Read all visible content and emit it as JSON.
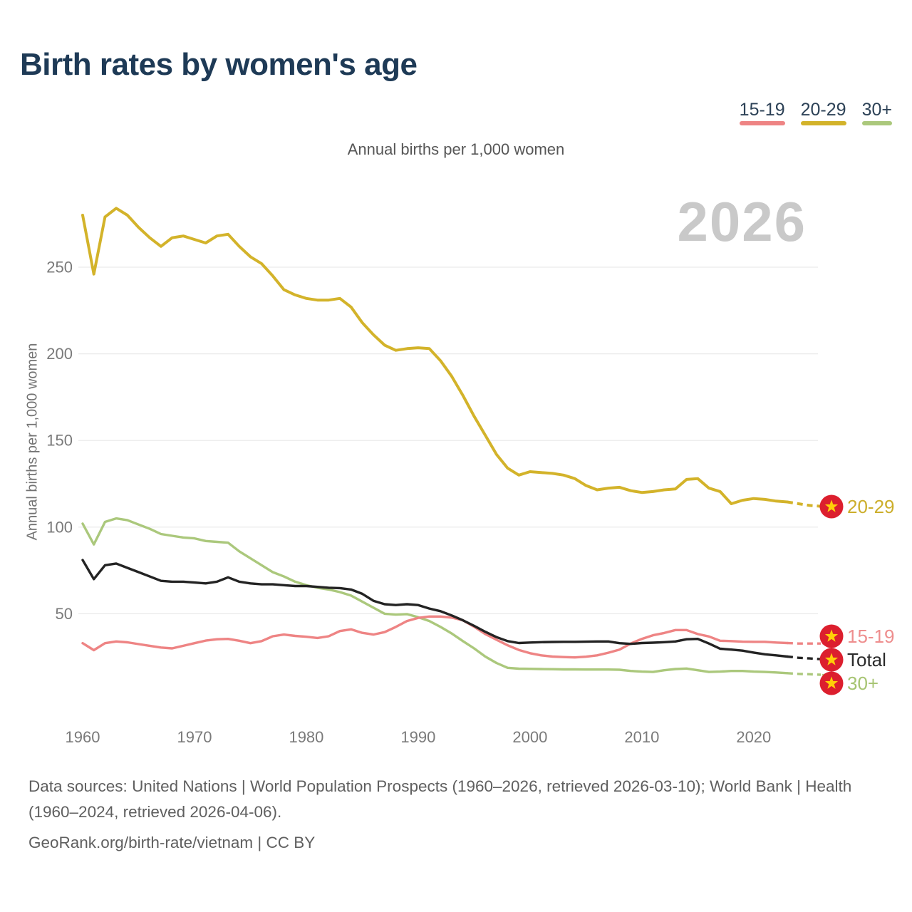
{
  "header": {
    "title": "Birth rates by women's age"
  },
  "legend": {
    "items": [
      {
        "label": "15-19",
        "color": "#ee8484"
      },
      {
        "label": "20-29",
        "color": "#d3b32a"
      },
      {
        "label": "30+",
        "color": "#abc87c"
      }
    ]
  },
  "watermark": "2026",
  "chart_data": {
    "type": "line",
    "title": "Birth rates by women's age",
    "subtitle": "Annual births per 1,000 women",
    "ylabel": "Annual births per 1,000 women",
    "x_range": [
      1960,
      2026
    ],
    "x_ticks": [
      1960,
      1970,
      1980,
      1990,
      2000,
      2010,
      2020
    ],
    "y_ticks": [
      50,
      100,
      150,
      200,
      250
    ],
    "ylim": [
      0,
      290
    ],
    "grid": "horizontal",
    "projection": {
      "start_year": 2023,
      "style": "dashed"
    },
    "series": [
      {
        "name": "20-29",
        "color": "#d3b32a",
        "label_color": "#ccae2b",
        "values": [
          280,
          246,
          279,
          284,
          280,
          273,
          267,
          262,
          267,
          268,
          266,
          264,
          268,
          269,
          262,
          256,
          252,
          245,
          237,
          234,
          232,
          231,
          231,
          232,
          227,
          218,
          211,
          205,
          202,
          203,
          203.5,
          203,
          196,
          187,
          176,
          164,
          153,
          142,
          134,
          130,
          132,
          131.5,
          131,
          130,
          128,
          124,
          121.5,
          122.5,
          123,
          121,
          120,
          120.5,
          121.5,
          122,
          127.5,
          128,
          122.5,
          120.5,
          113.5,
          115.5,
          116.5,
          116,
          115,
          114.5,
          113.5,
          112.5,
          112
        ]
      },
      {
        "name": "30+",
        "color": "#abc87c",
        "label_color": "#a6c472",
        "values": [
          102,
          90,
          103,
          105,
          104,
          101.5,
          99,
          96,
          95,
          94,
          93.5,
          92,
          91.5,
          91,
          86,
          82,
          78,
          74,
          71.5,
          68.5,
          66.5,
          65,
          64,
          62.5,
          60.5,
          57,
          53.5,
          50,
          49.5,
          49.8,
          48,
          45.8,
          42.4,
          38.6,
          34.2,
          30,
          25.3,
          21.6,
          18.8,
          18.3,
          18.2,
          18.1,
          18,
          17.9,
          17.9,
          17.8,
          17.8,
          17.8,
          17.7,
          17,
          16.6,
          16.4,
          17.4,
          18.1,
          18.4,
          17.4,
          16.4,
          16.6,
          17,
          17,
          16.6,
          16.4,
          16.1,
          15.7,
          15.3,
          15.1,
          14.8
        ]
      },
      {
        "name": "15-19",
        "color": "#ee8484",
        "label_color": "#ee8e8e",
        "values": [
          33,
          29,
          33,
          34,
          33.5,
          32.5,
          31.5,
          30.5,
          30,
          31.5,
          33,
          34.5,
          35.3,
          35.5,
          34.4,
          33,
          34.2,
          37,
          38,
          37.2,
          36.7,
          36,
          37,
          40,
          41,
          39,
          38,
          39.4,
          42.4,
          45.8,
          47.6,
          48.4,
          48.4,
          47.8,
          46.2,
          42.5,
          38.3,
          35,
          31.8,
          29.1,
          27.2,
          26,
          25.3,
          25,
          24.8,
          25.2,
          26,
          27.5,
          29.3,
          32.8,
          35.5,
          37.6,
          38.9,
          40.6,
          40.6,
          38.3,
          36.9,
          34.4,
          34.2,
          33.9,
          33.8,
          33.8,
          33.4,
          33.1,
          32.8,
          32.8,
          32.8
        ]
      },
      {
        "name": "Total",
        "color": "#232323",
        "label_color": "#2b2b2b",
        "values": [
          81,
          70,
          78,
          79,
          76.5,
          74,
          71.5,
          69,
          68.5,
          68.5,
          68,
          67.5,
          68.5,
          71,
          68.5,
          67.5,
          67,
          67,
          66.5,
          66,
          66,
          65.5,
          65,
          64.8,
          64,
          61.5,
          57.5,
          55.5,
          55,
          55.5,
          55,
          53,
          51.5,
          49,
          46.2,
          43,
          39.6,
          36.5,
          34.2,
          33.1,
          33.4,
          33.6,
          33.7,
          33.8,
          33.8,
          33.9,
          34,
          34,
          33,
          32.6,
          33.1,
          33.3,
          33.6,
          34,
          35.3,
          35.5,
          32.8,
          29.8,
          29.3,
          28.7,
          27.6,
          26.6,
          26,
          25.3,
          24.6,
          24.2,
          23.8
        ]
      }
    ],
    "end_markers": {
      "icon": "vietnam-flag-badge",
      "circle_color": "#dc1f2e",
      "star_color": "#ffcf08",
      "labels": [
        "20-29",
        "15-19",
        "Total",
        "30+"
      ]
    }
  },
  "footer": {
    "sources": "Data sources: United Nations | World Population Prospects (1960–2026, retrieved 2026-03-10); World Bank | Health (1960–2024, retrieved 2026-04-06).",
    "attribution": "GeoRank.org/birth-rate/vietnam | CC BY"
  }
}
